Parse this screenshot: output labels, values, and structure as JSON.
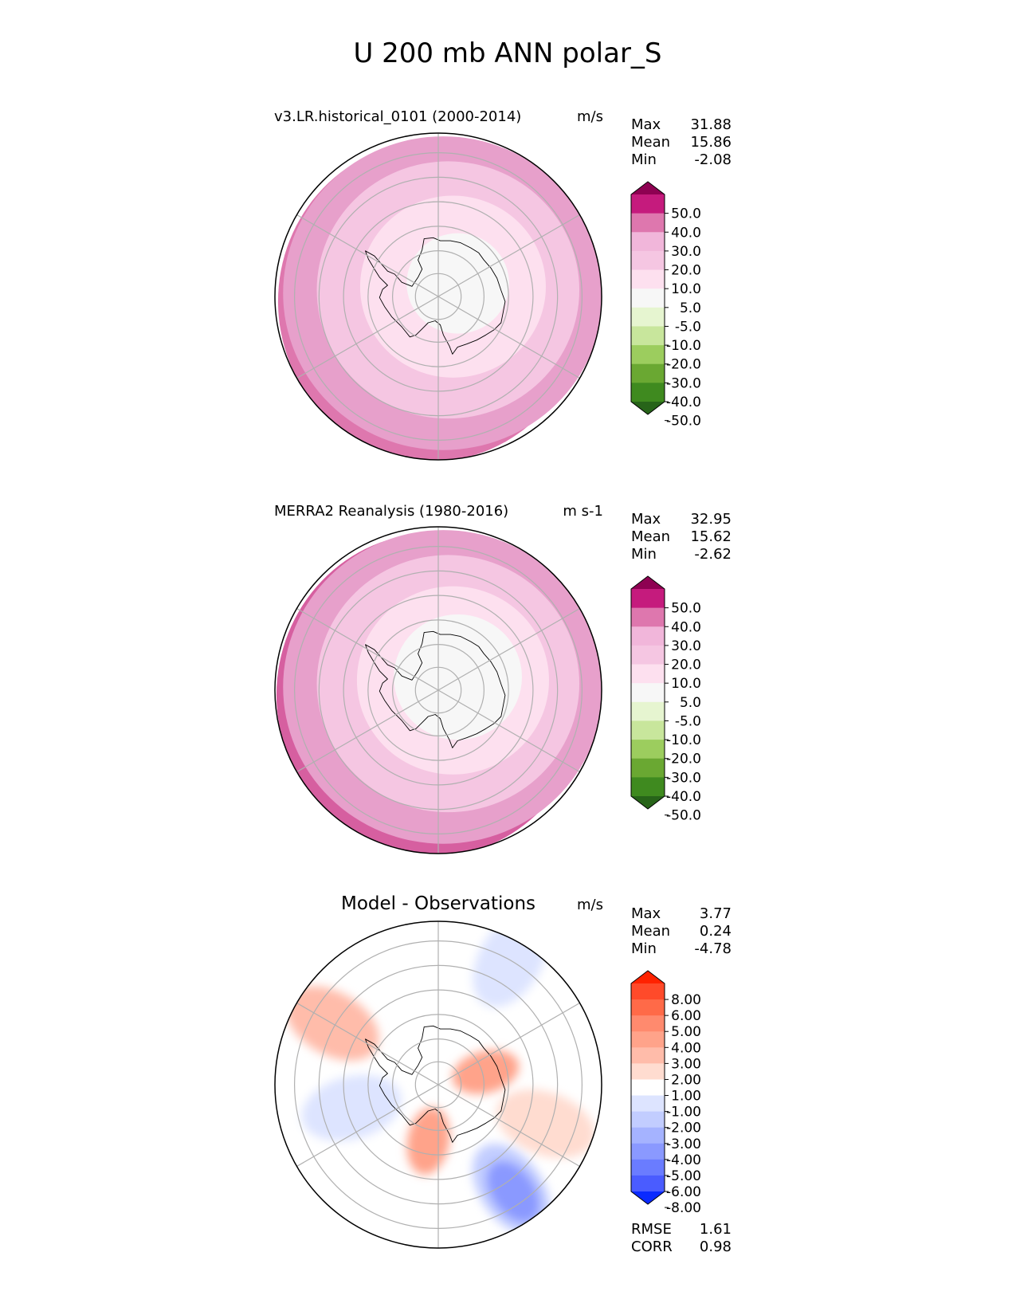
{
  "figure": {
    "title": "U 200 mb ANN polar_S"
  },
  "chart_data": [
    {
      "type": "heatmap",
      "projection": "south-polar-stereographic",
      "title": "v3.LR.historical_0101 (2000-2014)",
      "units": "m/s",
      "stats": [
        {
          "label": "Max",
          "value": "31.88"
        },
        {
          "label": "Mean",
          "value": "15.86"
        },
        {
          "label": "Min",
          "value": "-2.08"
        }
      ],
      "colorbar": {
        "levels": [
          "50.0",
          "40.0",
          "30.0",
          "20.0",
          "10.0",
          "5.0",
          "-5.0",
          "-10.0",
          "-20.0",
          "-30.0",
          "-40.0",
          "-50.0"
        ],
        "colors": [
          "#8e0152",
          "#c51b7d",
          "#de77ae",
          "#f1b6da",
          "#f5c6e2",
          "#fde0ef",
          "#f7f7f7",
          "#e6f5d0",
          "#c8e69c",
          "#9ccd5e",
          "#6aa832",
          "#3f8a1f",
          "#276419"
        ]
      },
      "field": [
        {
          "level": "40.0",
          "color": "#de77ae",
          "r": 0.96
        },
        {
          "level": "20.0",
          "color": "#e7a0cb",
          "r": 1.0
        },
        {
          "level": "10.0",
          "color": "#f5c6e2",
          "r": 0.82
        },
        {
          "level": "5.0",
          "color": "#fde0ef",
          "r": 0.58
        },
        {
          "level": "-5.0",
          "color": "#f7f7f7",
          "r": 0.32
        }
      ]
    },
    {
      "type": "heatmap",
      "projection": "south-polar-stereographic",
      "title": "MERRA2 Reanalysis (1980-2016)",
      "units": "m s-1",
      "stats": [
        {
          "label": "Max",
          "value": "32.95"
        },
        {
          "label": "Mean",
          "value": "15.62"
        },
        {
          "label": "Min",
          "value": "-2.62"
        }
      ],
      "colorbar": {
        "levels": [
          "50.0",
          "40.0",
          "30.0",
          "20.0",
          "10.0",
          "5.0",
          "-5.0",
          "-10.0",
          "-20.0",
          "-30.0",
          "-40.0",
          "-50.0"
        ],
        "colors": [
          "#8e0152",
          "#c51b7d",
          "#de77ae",
          "#f1b6da",
          "#f5c6e2",
          "#fde0ef",
          "#f7f7f7",
          "#e6f5d0",
          "#c8e69c",
          "#9ccd5e",
          "#6aa832",
          "#3f8a1f",
          "#276419"
        ]
      },
      "field": [
        {
          "level": "40.0",
          "color": "#d65fa0",
          "r": 0.97
        },
        {
          "level": "20.0",
          "color": "#e7a0cb",
          "r": 1.0
        },
        {
          "level": "10.0",
          "color": "#f5c6e2",
          "r": 0.82
        },
        {
          "level": "5.0",
          "color": "#fde0ef",
          "r": 0.6
        },
        {
          "level": "-5.0",
          "color": "#f7f7f7",
          "r": 0.4
        }
      ]
    },
    {
      "type": "heatmap",
      "projection": "south-polar-stereographic",
      "title": "Model - Observations",
      "units": "m/s",
      "stats": [
        {
          "label": "Max",
          "value": "3.77"
        },
        {
          "label": "Mean",
          "value": "0.24"
        },
        {
          "label": "Min",
          "value": "-4.78"
        }
      ],
      "colorbar": {
        "levels": [
          "8.00",
          "6.00",
          "5.00",
          "4.00",
          "3.00",
          "2.00",
          "1.00",
          "-1.00",
          "-2.00",
          "-3.00",
          "-4.00",
          "-5.00",
          "-6.00",
          "-8.00"
        ],
        "colors": [
          "#ff2200",
          "#ff4a2a",
          "#ff6a48",
          "#ff8a6e",
          "#ffa38a",
          "#ffbcaa",
          "#ffdcd0",
          "#ffffff",
          "#dde4ff",
          "#c2cdff",
          "#a5b3ff",
          "#8a99ff",
          "#6a7cff",
          "#4a5cff",
          "#0a2aff"
        ]
      },
      "anomalies": [
        {
          "level": "2.00",
          "color": "#ffbcaa",
          "lon": 300,
          "dist": 0.75
        },
        {
          "level": "3.00",
          "color": "#ffa38a",
          "lon": 75,
          "dist": 0.3
        },
        {
          "level": "3.00",
          "color": "#ffa38a",
          "lon": 190,
          "dist": 0.35
        },
        {
          "level": "1.00",
          "color": "#ffdcd0",
          "lon": 110,
          "dist": 0.7
        },
        {
          "level": "-2.00",
          "color": "#c2cdff",
          "lon": 145,
          "dist": 0.78
        },
        {
          "level": "-4.00",
          "color": "#8a99ff",
          "lon": 145,
          "dist": 0.8
        },
        {
          "level": "-1.00",
          "color": "#dde4ff",
          "lon": 255,
          "dist": 0.55
        },
        {
          "level": "-1.00",
          "color": "#dde4ff",
          "lon": 30,
          "dist": 0.88
        }
      ],
      "footer": [
        {
          "label": "RMSE",
          "value": "1.61"
        },
        {
          "label": "CORR",
          "value": "0.98"
        }
      ]
    }
  ]
}
